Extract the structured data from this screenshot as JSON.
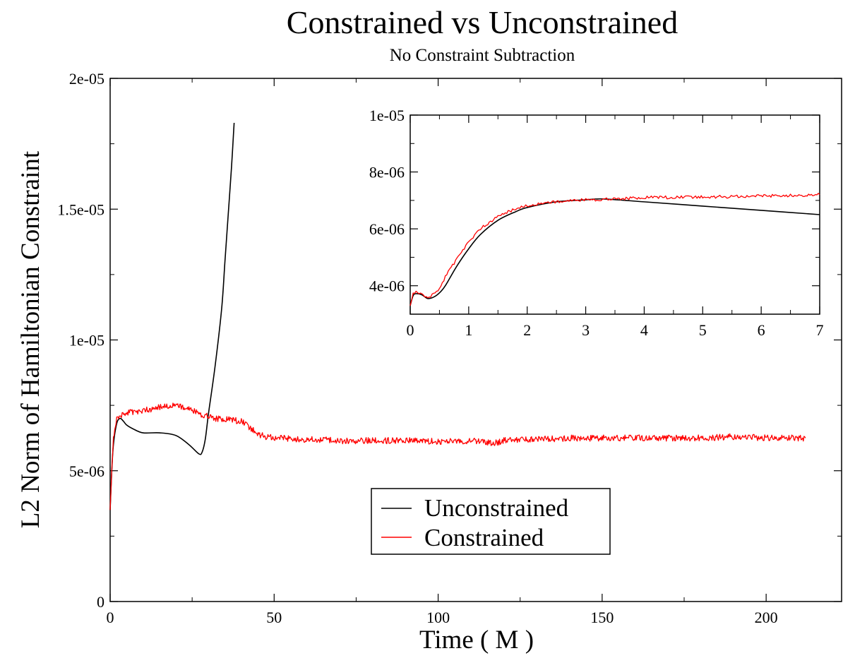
{
  "chart_data": [
    {
      "type": "line",
      "title": "Constrained vs Unconstrained",
      "subtitle": "No Constraint Subtraction",
      "xlabel": "Time ( M )",
      "ylabel": "L2 Norm of Hamiltonian Constraint",
      "xlim": [
        0,
        223
      ],
      "ylim": [
        0,
        2e-05
      ],
      "xticks": [
        0,
        50,
        100,
        150,
        200
      ],
      "xtick_labels": [
        "0",
        "50",
        "100",
        "150",
        "200"
      ],
      "yticks": [
        0,
        5e-06,
        1e-05,
        1.5e-05,
        2e-05
      ],
      "ytick_labels": [
        "0",
        "5e-06",
        "1e-05",
        "1.5e-05",
        "2e-05"
      ],
      "grid": false,
      "legend": "bottom-center",
      "series": [
        {
          "name": "Unconstrained",
          "color": "#000000",
          "x": [
            0,
            0.5,
            1,
            2,
            3,
            4,
            5,
            7,
            10,
            15,
            20,
            24,
            27,
            28,
            29,
            30,
            32,
            34,
            35,
            36,
            37,
            37.8
          ],
          "y": [
            3.5e-06,
            5e-06,
            6e-06,
            6.8e-06,
            7e-06,
            6.9e-06,
            6.75e-06,
            6.6e-06,
            6.45e-06,
            6.45e-06,
            6.35e-06,
            6e-06,
            5.65e-06,
            5.7e-06,
            6.2e-06,
            7.2e-06,
            9e-06,
            1.12e-05,
            1.3e-05,
            1.48e-05,
            1.66e-05,
            1.83e-05
          ]
        },
        {
          "name": "Constrained",
          "color": "#ff0000",
          "x": [
            0,
            0.5,
            1,
            2,
            3,
            5,
            8,
            12,
            16,
            20,
            24,
            28,
            32,
            36,
            40,
            43,
            46,
            50,
            60,
            70,
            80,
            90,
            100,
            110,
            117,
            120,
            130,
            140,
            150,
            160,
            170,
            180,
            190,
            200,
            210,
            212
          ],
          "y": [
            3.5e-06,
            5e-06,
            6.2e-06,
            7e-06,
            7.1e-06,
            7.2e-06,
            7.25e-06,
            7.35e-06,
            7.45e-06,
            7.5e-06,
            7.35e-06,
            7.15e-06,
            7e-06,
            6.95e-06,
            6.9e-06,
            6.6e-06,
            6.35e-06,
            6.25e-06,
            6.2e-06,
            6.15e-06,
            6.15e-06,
            6.15e-06,
            6.12e-06,
            6.15e-06,
            6.05e-06,
            6.15e-06,
            6.2e-06,
            6.25e-06,
            6.25e-06,
            6.25e-06,
            6.25e-06,
            6.25e-06,
            6.3e-06,
            6.25e-06,
            6.25e-06,
            6.25e-06
          ]
        }
      ]
    },
    {
      "type": "line",
      "title": "",
      "xlabel": "",
      "ylabel": "",
      "xlim": [
        0,
        7
      ],
      "ylim": [
        3e-06,
        1e-05
      ],
      "xticks": [
        0,
        1,
        2,
        3,
        4,
        5,
        6,
        7
      ],
      "xtick_labels": [
        "0",
        "1",
        "2",
        "3",
        "4",
        "5",
        "6",
        "7"
      ],
      "yticks": [
        4e-06,
        6e-06,
        8e-06,
        1e-05
      ],
      "ytick_labels": [
        "4e-06",
        "6e-06",
        "8e-06",
        "1e-05"
      ],
      "grid": false,
      "series": [
        {
          "name": "Unconstrained",
          "color": "#000000",
          "x": [
            0,
            0.05,
            0.1,
            0.2,
            0.3,
            0.4,
            0.5,
            0.6,
            0.8,
            1.0,
            1.2,
            1.5,
            1.8,
            2.0,
            2.5,
            3.0,
            3.3,
            4.0,
            5.0,
            6.0,
            7.0
          ],
          "y": [
            3.3e-06,
            3.65e-06,
            3.72e-06,
            3.68e-06,
            3.55e-06,
            3.6e-06,
            3.75e-06,
            4e-06,
            4.7e-06,
            5.3e-06,
            5.8e-06,
            6.3e-06,
            6.6e-06,
            6.75e-06,
            6.95e-06,
            7.02e-06,
            7.05e-06,
            6.95e-06,
            6.8e-06,
            6.65e-06,
            6.5e-06
          ]
        },
        {
          "name": "Constrained",
          "color": "#ff0000",
          "x": [
            0,
            0.05,
            0.1,
            0.2,
            0.3,
            0.4,
            0.5,
            0.6,
            0.8,
            1.0,
            1.2,
            1.5,
            1.8,
            2.0,
            2.5,
            3.0,
            3.5,
            4.0,
            5.0,
            6.0,
            6.5,
            7.0
          ],
          "y": [
            3.3e-06,
            3.7e-06,
            3.78e-06,
            3.7e-06,
            3.58e-06,
            3.7e-06,
            3.9e-06,
            4.3e-06,
            4.95e-06,
            5.55e-06,
            6e-06,
            6.45e-06,
            6.7e-06,
            6.82e-06,
            6.95e-06,
            7.02e-06,
            7.05e-06,
            7.1e-06,
            7.12e-06,
            7.15e-06,
            7.18e-06,
            7.2e-06
          ]
        }
      ]
    }
  ],
  "legend": {
    "items": [
      {
        "label": "Unconstrained",
        "color": "#000000"
      },
      {
        "label": "Constrained",
        "color": "#ff0000"
      }
    ]
  }
}
